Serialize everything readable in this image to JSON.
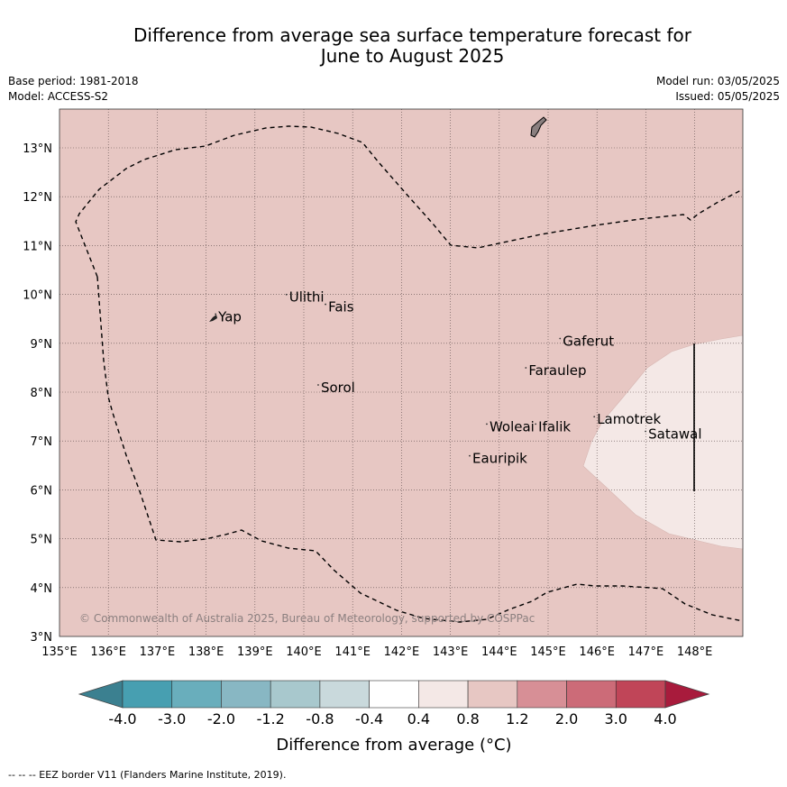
{
  "header": {
    "title_line1": "Difference from average sea surface temperature forecast for",
    "title_line2": "June to August 2025",
    "base_period": "Base period: 1981-2018",
    "model": "Model: ACCESS-S2",
    "model_run": "Model run: 03/05/2025",
    "issued": "Issued: 05/05/2025"
  },
  "map": {
    "lat_labels": [
      "13°N",
      "12°N",
      "11°N",
      "10°N",
      "9°N",
      "8°N",
      "7°N",
      "6°N",
      "5°N",
      "4°N",
      "3°N"
    ],
    "lon_labels": [
      "135°E",
      "136°E",
      "137°E",
      "138°E",
      "139°E",
      "140°E",
      "141°E",
      "142°E",
      "143°E",
      "144°E",
      "145°E",
      "146°E",
      "147°E",
      "148°E"
    ],
    "background_anomaly_color": "#e7c7c3",
    "warm_patch_color": "#f4e8e6",
    "eez_color": "#000000",
    "places": [
      {
        "name": "Yap",
        "lon": 138.25,
        "lat": 9.45
      },
      {
        "name": "Ulithi",
        "lon": 139.7,
        "lat": 9.85
      },
      {
        "name": "Fais",
        "lon": 140.5,
        "lat": 9.65
      },
      {
        "name": "Sorol",
        "lon": 140.35,
        "lat": 8.0
      },
      {
        "name": "Gaferut",
        "lon": 145.3,
        "lat": 8.95
      },
      {
        "name": "Faraulep",
        "lon": 144.6,
        "lat": 8.35
      },
      {
        "name": "Woleai",
        "lon": 143.8,
        "lat": 7.2
      },
      {
        "name": "Ifalik",
        "lon": 144.8,
        "lat": 7.2
      },
      {
        "name": "Lamotrek",
        "lon": 146.0,
        "lat": 7.35
      },
      {
        "name": "Satawal",
        "lon": 147.05,
        "lat": 7.05
      },
      {
        "name": "Eauripik",
        "lon": 143.45,
        "lat": 6.55
      }
    ],
    "copyright": "© Commonwealth of Australia 2025, Bureau of Meteorology, supported by COSPPac"
  },
  "colorbar": {
    "label": "Difference from average (°C)",
    "tick_labels": [
      "-4.0",
      "-3.0",
      "-2.0",
      "-1.2",
      "-0.8",
      "-0.4",
      "0.4",
      "0.8",
      "1.2",
      "2.0",
      "3.0",
      "4.0"
    ],
    "colors": [
      "#479fb1",
      "#69aebc",
      "#88b7c3",
      "#a8c8cd",
      "#c9d9dc",
      "#ffffff",
      "#f4e8e6",
      "#e7c7c3",
      "#d78f96",
      "#cc6b78",
      "#c04558"
    ],
    "under_color": "#3b8090",
    "over_color": "#a81b3c"
  },
  "footer": {
    "eez_note": "--  --  -- EEZ border V11 (Flanders Marine Institute, 2019)."
  }
}
